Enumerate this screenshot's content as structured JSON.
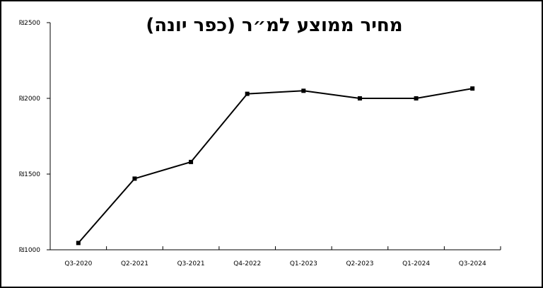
{
  "chart_data": {
    "type": "line",
    "title": "מחיר ממוצע למ״ר (כפר יונה)",
    "xlabel": "",
    "ylabel": "",
    "categories": [
      "Q3-2020",
      "Q2-2021",
      "Q3-2021",
      "Q4-2022",
      "Q1-2023",
      "Q2-2023",
      "Q1-2024",
      "Q3-2024"
    ],
    "series": [
      {
        "values": [
          1045,
          1470,
          1580,
          2030,
          2050,
          2000,
          2000,
          2065
        ]
      }
    ],
    "ylim": [
      1000,
      2500
    ],
    "yticks": [
      1000,
      1500,
      2000,
      2500
    ],
    "ytick_labels": [
      "₪1000",
      "₪1500",
      "₪2000",
      "₪2500"
    ],
    "grid": false,
    "legend": "none",
    "line_color": "#000000",
    "marker": "square"
  }
}
